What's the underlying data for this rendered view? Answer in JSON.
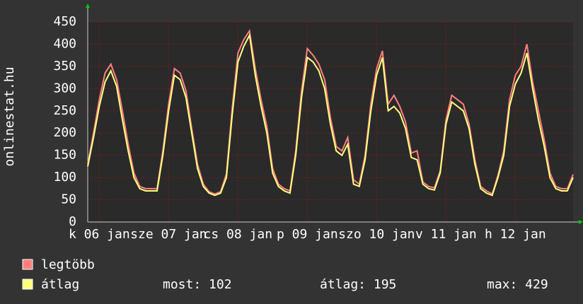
{
  "chart_data": {
    "type": "line",
    "y_label": "onlinestat.hu",
    "x": [
      0,
      2,
      4,
      6,
      8,
      10,
      12,
      14,
      16,
      18,
      20,
      22,
      24,
      26,
      28,
      30,
      32,
      34,
      36,
      38,
      40,
      42,
      44,
      46,
      48,
      50,
      52,
      54,
      56,
      58,
      60,
      62,
      64,
      66,
      68,
      70,
      72,
      74,
      76,
      78,
      80,
      82,
      84,
      86,
      88,
      90,
      92,
      94,
      96,
      98,
      100,
      102,
      104,
      106,
      108,
      110,
      112,
      114,
      116,
      118,
      120,
      122,
      124,
      126,
      128,
      130,
      132,
      134,
      136,
      138,
      140,
      142,
      144,
      146,
      148,
      150,
      152,
      154,
      156,
      158,
      160,
      162,
      164,
      166,
      168
    ],
    "series": [
      {
        "name": "legtöbb",
        "color": "#ff7f7f",
        "values": [
          130,
          200,
          275,
          335,
          355,
          320,
          250,
          175,
          110,
          80,
          75,
          75,
          75,
          160,
          265,
          345,
          335,
          295,
          210,
          130,
          85,
          68,
          63,
          68,
          108,
          255,
          380,
          410,
          430,
          345,
          275,
          215,
          120,
          85,
          75,
          70,
          160,
          295,
          390,
          375,
          355,
          320,
          235,
          170,
          160,
          190,
          95,
          85,
          150,
          265,
          345,
          385,
          265,
          285,
          260,
          225,
          155,
          160,
          90,
          80,
          77,
          115,
          230,
          285,
          275,
          265,
          220,
          140,
          80,
          70,
          63,
          105,
          160,
          275,
          330,
          350,
          400,
          315,
          250,
          185,
          110,
          80,
          75,
          75,
          107
        ]
      },
      {
        "name": "átlag",
        "color": "#ffff7f",
        "values": [
          125,
          190,
          260,
          315,
          340,
          305,
          230,
          160,
          100,
          75,
          70,
          70,
          70,
          150,
          250,
          330,
          320,
          280,
          200,
          120,
          80,
          65,
          60,
          65,
          100,
          240,
          360,
          395,
          420,
          330,
          260,
          200,
          110,
          80,
          70,
          65,
          150,
          280,
          370,
          360,
          340,
          300,
          220,
          160,
          150,
          175,
          85,
          80,
          140,
          250,
          330,
          370,
          250,
          260,
          245,
          210,
          145,
          140,
          85,
          75,
          72,
          110,
          220,
          270,
          260,
          250,
          210,
          130,
          75,
          65,
          60,
          100,
          150,
          260,
          310,
          335,
          380,
          300,
          230,
          170,
          100,
          75,
          70,
          70,
          100
        ]
      }
    ],
    "xlim": [
      0,
      168
    ],
    "xticks": [
      {
        "value": 4,
        "label": "k 06 jan"
      },
      {
        "value": 28,
        "label": "sze 07 jan"
      },
      {
        "value": 52,
        "label": "cs 08 jan"
      },
      {
        "value": 76,
        "label": "p 09 jan"
      },
      {
        "value": 100,
        "label": "szo 10 jan"
      },
      {
        "value": 124,
        "label": "v 11 jan"
      },
      {
        "value": 148,
        "label": "h 12 jan"
      }
    ],
    "ylim": [
      0,
      450
    ],
    "yticks": [
      0,
      50,
      100,
      150,
      200,
      250,
      300,
      350,
      400,
      450
    ],
    "grid": true,
    "stats": [
      "most: 102",
      "átlag: 195",
      "max: 429"
    ]
  }
}
